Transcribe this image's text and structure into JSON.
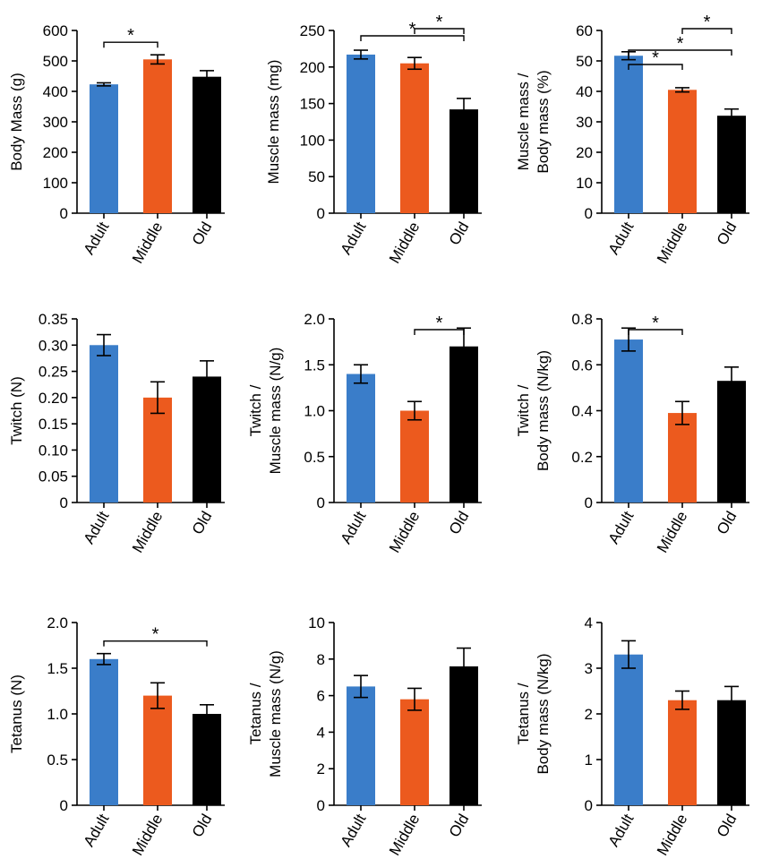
{
  "colors": {
    "Adult": "#3a7dc9",
    "Middle": "#ec5a1e",
    "Old": "#000000"
  },
  "chart_data": [
    {
      "type": "bar",
      "categories": [
        "Adult",
        "Middle",
        "Old"
      ],
      "values": [
        423,
        505,
        448
      ],
      "errors": [
        5,
        15,
        20
      ],
      "ylabel": [
        "Body Mass (g)"
      ],
      "ylim": [
        0,
        600
      ],
      "yticks": [
        "0",
        "100",
        "200",
        "300",
        "400",
        "500",
        "600"
      ],
      "significance": [
        {
          "from": 0,
          "to": 1,
          "label": "*"
        }
      ]
    },
    {
      "type": "bar",
      "categories": [
        "Adult",
        "Middle",
        "Old"
      ],
      "values": [
        217,
        205,
        142
      ],
      "errors": [
        6,
        8,
        15
      ],
      "ylabel": [
        "Muscle mass (mg)"
      ],
      "ylim": [
        0,
        250
      ],
      "yticks": [
        "0",
        "50",
        "100",
        "150",
        "200",
        "250"
      ],
      "significance": [
        {
          "from": 1,
          "to": 2,
          "label": "*"
        },
        {
          "from": 0,
          "to": 2,
          "label": "*"
        }
      ]
    },
    {
      "type": "bar",
      "categories": [
        "Adult",
        "Middle",
        "Old"
      ],
      "values": [
        51.7,
        40.5,
        32
      ],
      "errors": [
        1.3,
        0.7,
        2.2
      ],
      "ylabel": [
        "Muscle mass /",
        "Body mass (%)"
      ],
      "ylim": [
        0,
        60
      ],
      "yticks": [
        "0",
        "10",
        "20",
        "30",
        "40",
        "50",
        "60"
      ],
      "significance": [
        {
          "from": 0,
          "to": 1,
          "label": "*"
        },
        {
          "from": 0,
          "to": 2,
          "label": "*"
        },
        {
          "from": 1,
          "to": 2,
          "label": "*"
        }
      ]
    },
    {
      "type": "bar",
      "categories": [
        "Adult",
        "Middle",
        "Old"
      ],
      "values": [
        0.3,
        0.2,
        0.24
      ],
      "errors": [
        0.02,
        0.03,
        0.03
      ],
      "ylabel": [
        "Twitch (N)"
      ],
      "ylim": [
        0,
        0.35
      ],
      "yticks": [
        "0",
        "0.05",
        "0.10",
        "0.15",
        "0.20",
        "0.25",
        "0.30",
        "0.35"
      ],
      "significance": []
    },
    {
      "type": "bar",
      "categories": [
        "Adult",
        "Middle",
        "Old"
      ],
      "values": [
        1.4,
        1.0,
        1.7
      ],
      "errors": [
        0.1,
        0.1,
        0.2
      ],
      "ylabel": [
        "Twitch /",
        "Muscle mass (N/g)"
      ],
      "ylim": [
        0,
        2.0
      ],
      "yticks": [
        "0",
        "0.5",
        "1.0",
        "1.5",
        "2.0"
      ],
      "significance": [
        {
          "from": 1,
          "to": 2,
          "label": "*"
        }
      ]
    },
    {
      "type": "bar",
      "categories": [
        "Adult",
        "Middle",
        "Old"
      ],
      "values": [
        0.71,
        0.39,
        0.53
      ],
      "errors": [
        0.05,
        0.05,
        0.06
      ],
      "ylabel": [
        "Twitch /",
        "Body mass (N/kg)"
      ],
      "ylim": [
        0,
        0.8
      ],
      "yticks": [
        "0",
        "0.2",
        "0.4",
        "0.6",
        "0.8"
      ],
      "significance": [
        {
          "from": 0,
          "to": 1,
          "label": "*"
        }
      ]
    },
    {
      "type": "bar",
      "categories": [
        "Adult",
        "Middle",
        "Old"
      ],
      "values": [
        1.6,
        1.2,
        1.0
      ],
      "errors": [
        0.06,
        0.14,
        0.1
      ],
      "ylabel": [
        "Tetanus (N)"
      ],
      "ylim": [
        0,
        2.0
      ],
      "yticks": [
        "0",
        "0.5",
        "1.0",
        "1.5",
        "2.0"
      ],
      "significance": [
        {
          "from": 0,
          "to": 2,
          "label": "*"
        }
      ]
    },
    {
      "type": "bar",
      "categories": [
        "Adult",
        "Middle",
        "Old"
      ],
      "values": [
        6.5,
        5.8,
        7.6
      ],
      "errors": [
        0.6,
        0.6,
        1.0
      ],
      "ylabel": [
        "Tetanus /",
        "Muscle mass (N/g)"
      ],
      "ylim": [
        0,
        10
      ],
      "yticks": [
        "0",
        "2",
        "4",
        "6",
        "8",
        "10"
      ],
      "significance": []
    },
    {
      "type": "bar",
      "categories": [
        "Adult",
        "Middle",
        "Old"
      ],
      "values": [
        3.3,
        2.3,
        2.3
      ],
      "errors": [
        0.3,
        0.2,
        0.3
      ],
      "ylabel": [
        "Tetanus /",
        "Body mass (N/kg)"
      ],
      "ylim": [
        0,
        4
      ],
      "yticks": [
        "0",
        "1",
        "2",
        "3",
        "4"
      ],
      "significance": []
    }
  ]
}
